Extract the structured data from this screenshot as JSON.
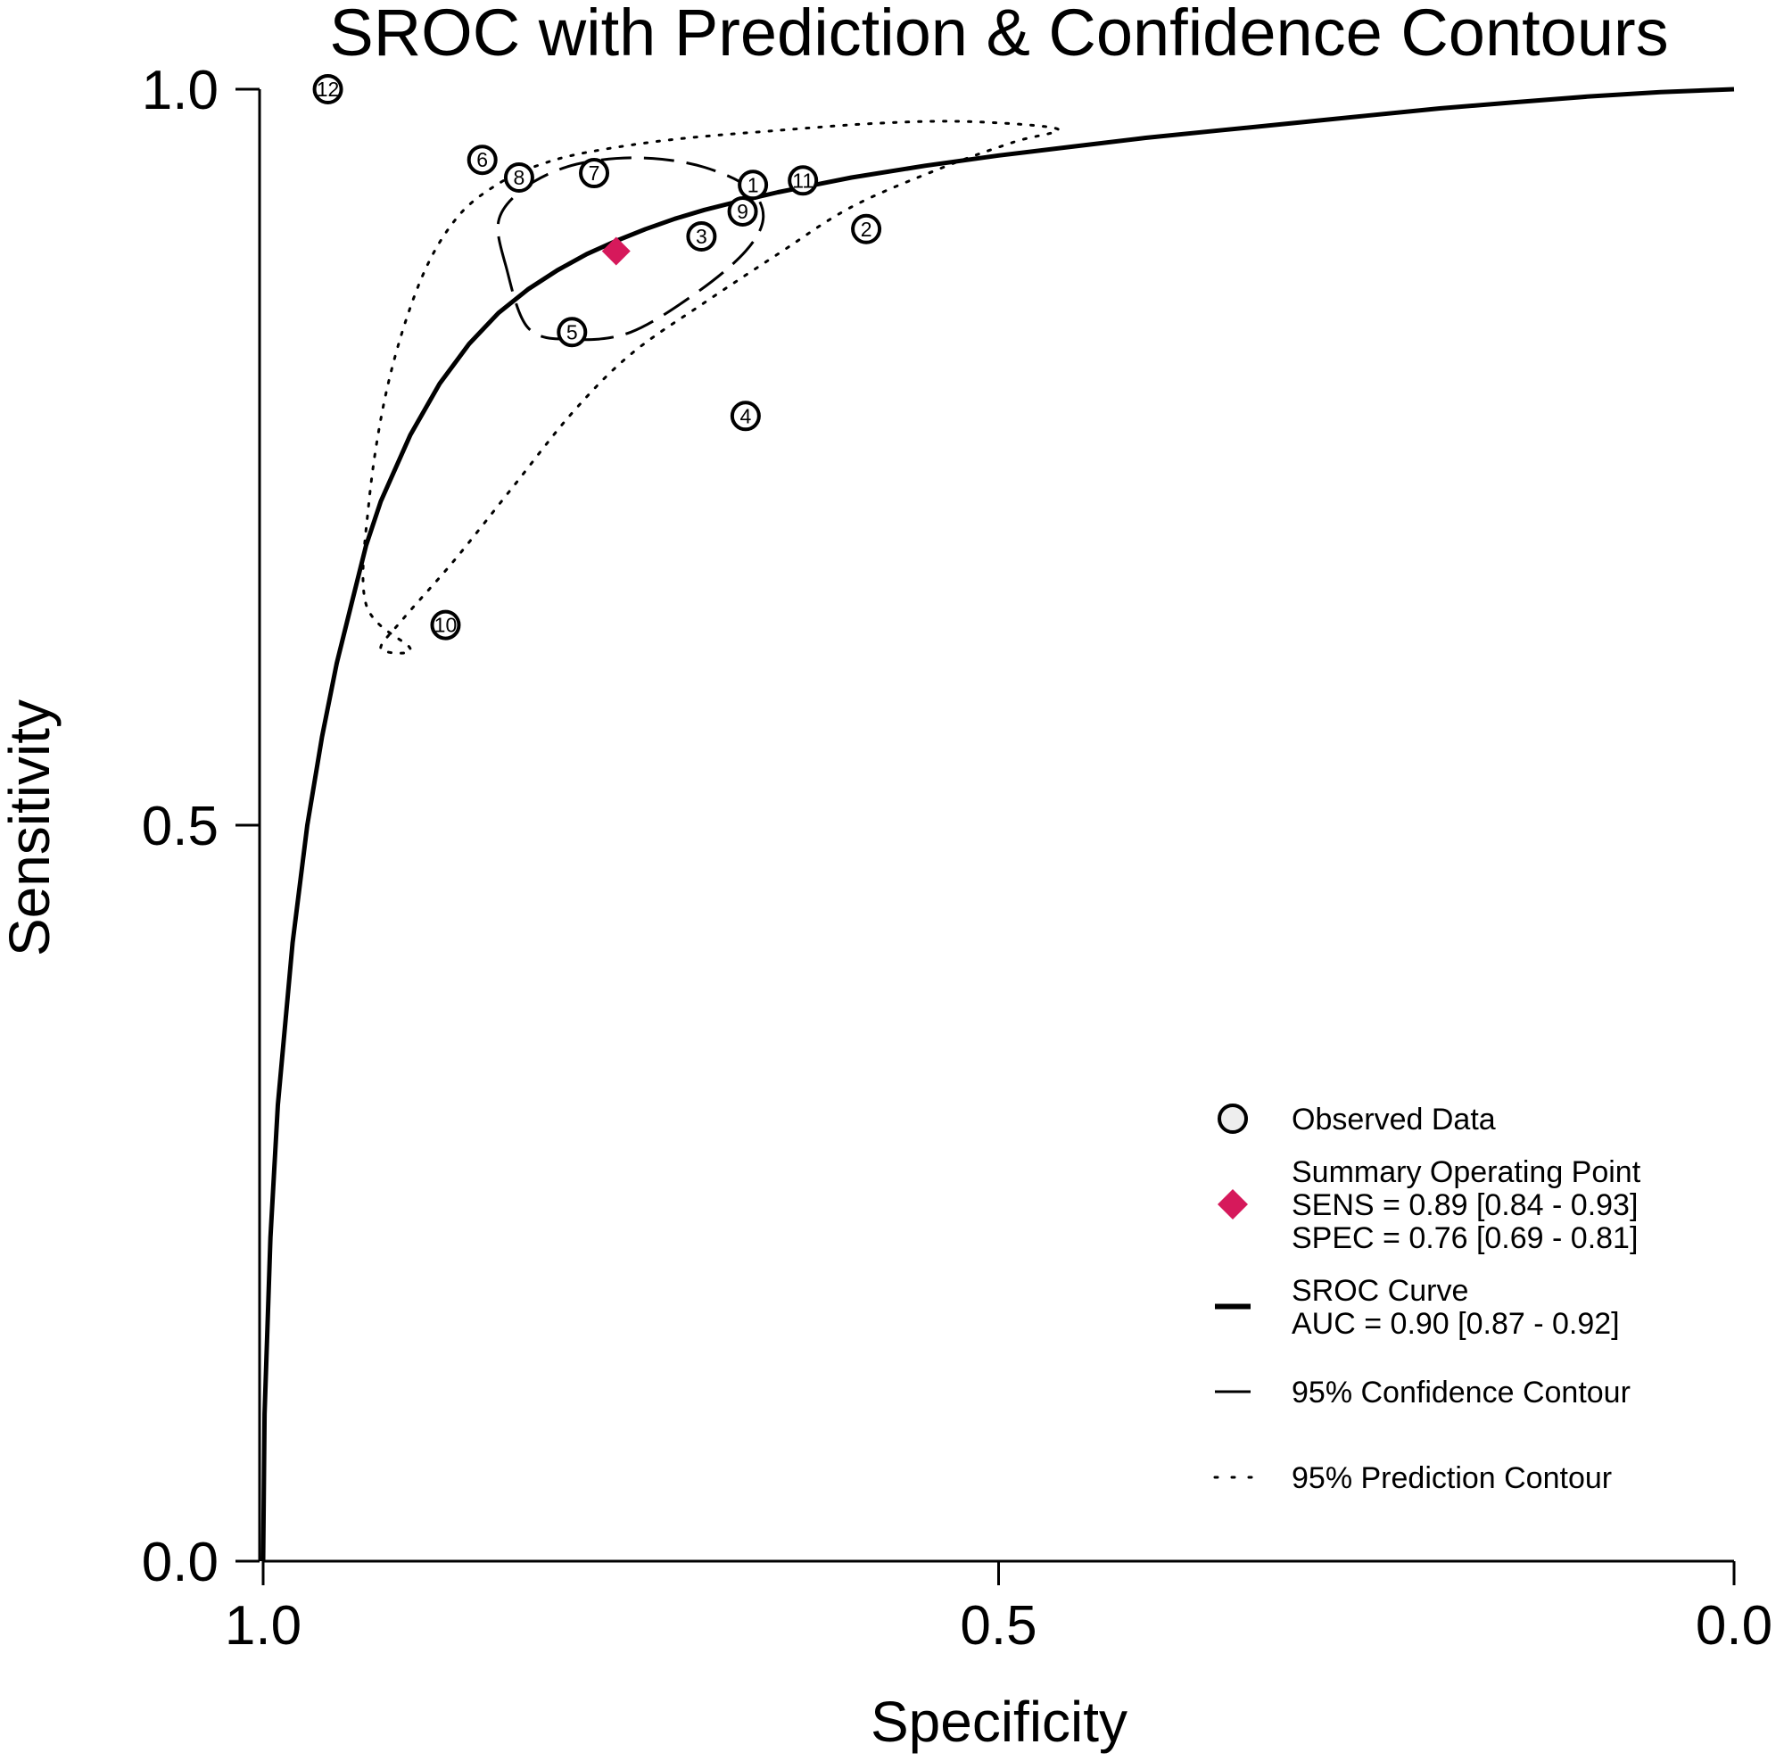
{
  "chart_data": {
    "type": "scatter",
    "title": "SROC with Prediction & Confidence Contours",
    "xlabel": "Specificity",
    "ylabel": "Sensitivity",
    "x_reversed": true,
    "xlim": [
      1.0,
      0.0
    ],
    "ylim": [
      0.0,
      1.0
    ],
    "x_ticks": [
      "1.0",
      "0.5",
      "0.0"
    ],
    "y_ticks": [
      "0.0",
      "0.5",
      "1.0"
    ],
    "grid": false,
    "legend_position": "bottom-right",
    "colors": {
      "summary_point": "#d6195b",
      "lines": "#000000",
      "observed_fill": "#ffffff"
    },
    "observed_data": [
      {
        "label": "1",
        "spec": 0.667,
        "sens": 0.935
      },
      {
        "label": "2",
        "spec": 0.59,
        "sens": 0.905
      },
      {
        "label": "3",
        "spec": 0.702,
        "sens": 0.9
      },
      {
        "label": "4",
        "spec": 0.672,
        "sens": 0.778
      },
      {
        "label": "5",
        "spec": 0.79,
        "sens": 0.835
      },
      {
        "label": "6",
        "spec": 0.851,
        "sens": 0.952
      },
      {
        "label": "7",
        "spec": 0.775,
        "sens": 0.943
      },
      {
        "label": "8",
        "spec": 0.826,
        "sens": 0.94
      },
      {
        "label": "9",
        "spec": 0.674,
        "sens": 0.917
      },
      {
        "label": "10",
        "spec": 0.876,
        "sens": 0.636
      },
      {
        "label": "11",
        "spec": 0.633,
        "sens": 0.938
      },
      {
        "label": "12",
        "spec": 0.956,
        "sens": 1.0
      }
    ],
    "summary_point": {
      "spec": 0.76,
      "sens": 0.89
    },
    "sroc_curve": {
      "x": [
        1.0,
        0.999,
        0.995,
        0.99,
        0.98,
        0.97,
        0.96,
        0.95,
        0.94,
        0.93,
        0.92,
        0.9,
        0.88,
        0.86,
        0.84,
        0.82,
        0.8,
        0.78,
        0.76,
        0.74,
        0.72,
        0.7,
        0.68,
        0.65,
        0.62,
        0.6,
        0.55,
        0.5,
        0.45,
        0.4,
        0.35,
        0.3,
        0.25,
        0.2,
        0.15,
        0.1,
        0.05,
        0.0
      ],
      "y": [
        0.0,
        0.1,
        0.22,
        0.31,
        0.42,
        0.5,
        0.56,
        0.61,
        0.65,
        0.69,
        0.72,
        0.765,
        0.8,
        0.827,
        0.848,
        0.864,
        0.877,
        0.888,
        0.897,
        0.905,
        0.912,
        0.918,
        0.923,
        0.93,
        0.936,
        0.94,
        0.948,
        0.955,
        0.961,
        0.967,
        0.972,
        0.977,
        0.982,
        0.987,
        0.991,
        0.995,
        0.998,
        1.0
      ]
    },
    "confidence_contour": {
      "x": [
        0.835,
        0.84,
        0.826,
        0.8,
        0.77,
        0.735,
        0.7,
        0.67,
        0.66,
        0.672,
        0.705,
        0.75,
        0.79,
        0.82,
        0.835
      ],
      "y": [
        0.88,
        0.91,
        0.93,
        0.945,
        0.952,
        0.953,
        0.947,
        0.933,
        0.913,
        0.89,
        0.862,
        0.835,
        0.83,
        0.838,
        0.88
      ]
    },
    "prediction_contour": {
      "x": [
        0.9,
        0.93,
        0.928,
        0.915,
        0.893,
        0.868,
        0.838,
        0.808,
        0.775,
        0.72,
        0.65,
        0.58,
        0.52,
        0.46,
        0.49,
        0.54,
        0.6,
        0.65,
        0.7,
        0.75,
        0.79,
        0.83,
        0.87,
        0.905,
        0.92,
        0.9
      ],
      "y": [
        0.62,
        0.65,
        0.72,
        0.8,
        0.87,
        0.913,
        0.937,
        0.95,
        0.958,
        0.966,
        0.972,
        0.977,
        0.978,
        0.973,
        0.964,
        0.946,
        0.92,
        0.888,
        0.855,
        0.82,
        0.78,
        0.73,
        0.68,
        0.64,
        0.62,
        0.62
      ]
    },
    "legend": [
      {
        "key": "observed",
        "lines": [
          "Observed Data"
        ]
      },
      {
        "key": "summary",
        "lines": [
          "Summary Operating Point",
          "SENS = 0.89 [0.84 - 0.93]",
          "SPEC = 0.76 [0.69 - 0.81]"
        ]
      },
      {
        "key": "sroc",
        "lines": [
          "SROC Curve",
          "AUC = 0.90 [0.87 - 0.92]"
        ]
      },
      {
        "key": "confidence",
        "lines": [
          "95% Confidence Contour"
        ]
      },
      {
        "key": "prediction",
        "lines": [
          "95% Prediction Contour"
        ]
      }
    ]
  }
}
